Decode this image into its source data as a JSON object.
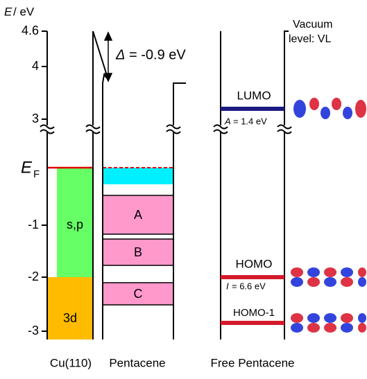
{
  "axis": {
    "title_symbol": "E",
    "title_unit": "/ eV",
    "ticks": [
      "4.6",
      "4",
      "3",
      "-1",
      "-2",
      "-3"
    ],
    "fermi_symbol": "E",
    "fermi_subscript": "F"
  },
  "shift": {
    "symbol": "Δ",
    "text": "= -0.9 eV"
  },
  "vacuum_level": {
    "line1": "Vacuum",
    "line2": "level: VL"
  },
  "cu": {
    "bands": [
      "s,p",
      "3d"
    ],
    "label": "Cu(110)"
  },
  "pentacene": {
    "bands": [
      "A",
      "B",
      "C"
    ],
    "label": "Pentacene"
  },
  "free": {
    "lumo": "LUMO",
    "affinity_symbol": "A",
    "affinity_text": "= 1.4 eV",
    "homo": "HOMO",
    "ionization_symbol": "I",
    "ionization_text": "= 6.6 eV",
    "homo1": "HOMO-1",
    "label": "Free Pentacene"
  }
}
